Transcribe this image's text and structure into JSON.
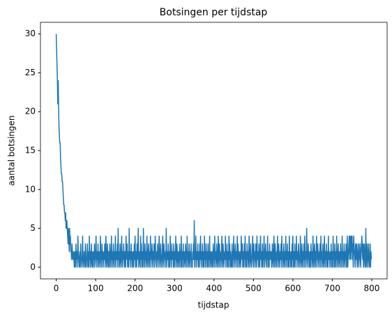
{
  "chart_data": {
    "type": "line",
    "title": "Botsingen per tijdstap",
    "x_label": "tijdstap",
    "y_label": "aantal botsingen",
    "xlim": [
      -39.95,
      838.95
    ],
    "xticks": [
      0,
      100,
      200,
      300,
      400,
      500,
      600,
      700,
      800
    ],
    "ylim": [
      -1.5,
      31.5
    ],
    "yticks": [
      0,
      5,
      10,
      15,
      20,
      25,
      30
    ],
    "grid": false,
    "x": [
      0,
      1,
      2,
      3,
      4,
      5,
      6,
      7,
      8,
      9,
      10,
      11,
      12,
      13,
      14,
      15,
      16,
      17,
      18,
      19,
      20,
      21,
      22,
      23,
      24,
      25,
      26,
      27,
      28,
      29,
      30,
      31,
      32,
      33,
      34,
      35,
      36,
      37,
      38,
      39,
      40,
      41,
      42,
      43,
      44,
      45,
      46,
      47,
      48,
      49,
      50,
      51,
      52,
      53,
      54,
      55,
      56,
      57,
      58,
      59,
      60,
      61,
      62,
      63,
      64,
      65,
      66,
      67,
      68,
      69,
      70,
      71,
      72,
      73,
      74,
      75,
      76,
      77,
      78,
      79,
      80,
      81,
      82,
      83,
      84,
      85,
      86,
      87,
      88,
      89,
      90,
      91,
      92,
      93,
      94,
      95,
      96,
      97,
      98,
      99,
      100,
      101,
      102,
      103,
      104,
      105,
      106,
      107,
      108,
      109,
      110,
      111,
      112,
      113,
      114,
      115,
      116,
      117,
      118,
      119,
      120,
      121,
      122,
      123,
      124,
      125,
      126,
      127,
      128,
      129,
      130,
      131,
      132,
      133,
      134,
      135,
      136,
      137,
      138,
      139,
      140,
      141,
      142,
      143,
      144,
      145,
      146,
      147,
      148,
      149,
      150,
      151,
      152,
      153,
      154,
      155,
      156,
      157,
      158,
      159,
      160,
      161,
      162,
      163,
      164,
      165,
      166,
      167,
      168,
      169,
      170,
      171,
      172,
      173,
      174,
      175,
      176,
      177,
      178,
      179,
      180,
      181,
      182,
      183,
      184,
      185,
      186,
      187,
      188,
      189,
      190,
      191,
      192,
      193,
      194,
      195,
      196,
      197,
      198,
      199,
      200,
      201,
      202,
      203,
      204,
      205,
      206,
      207,
      208,
      209,
      210,
      211,
      212,
      213,
      214,
      215,
      216,
      217,
      218,
      219,
      220,
      221,
      222,
      223,
      224,
      225,
      226,
      227,
      228,
      229,
      230,
      231,
      232,
      233,
      234,
      235,
      236,
      237,
      238,
      239,
      240,
      241,
      242,
      243,
      244,
      245,
      246,
      247,
      248,
      249,
      250,
      251,
      252,
      253,
      254,
      255,
      256,
      257,
      258,
      259,
      260,
      261,
      262,
      263,
      264,
      265,
      266,
      267,
      268,
      269,
      270,
      271,
      272,
      273,
      274,
      275,
      276,
      277,
      278,
      279,
      280,
      281,
      282,
      283,
      284,
      285,
      286,
      287,
      288,
      289,
      290,
      291,
      292,
      293,
      294,
      295,
      296,
      297,
      298,
      299,
      300,
      301,
      302,
      303,
      304,
      305,
      306,
      307,
      308,
      309,
      310,
      311,
      312,
      313,
      314,
      315,
      316,
      317,
      318,
      319,
      320,
      321,
      322,
      323,
      324,
      325,
      326,
      327,
      328,
      329,
      330,
      331,
      332,
      333,
      334,
      335,
      336,
      337,
      338,
      339,
      340,
      341,
      342,
      343,
      344,
      345,
      346,
      347,
      348,
      349,
      350,
      351,
      352,
      353,
      354,
      355,
      356,
      357,
      358,
      359,
      360,
      361,
      362,
      363,
      364,
      365,
      366,
      367,
      368,
      369,
      370,
      371,
      372,
      373,
      374,
      375,
      376,
      377,
      378,
      379,
      380,
      381,
      382,
      383,
      384,
      385,
      386,
      387,
      388,
      389,
      390,
      391,
      392,
      393,
      394,
      395,
      396,
      397,
      398,
      399,
      400,
      401,
      402,
      403,
      404,
      405,
      406,
      407,
      408,
      409,
      410,
      411,
      412,
      413,
      414,
      415,
      416,
      417,
      418,
      419,
      420,
      421,
      422,
      423,
      424,
      425,
      426,
      427,
      428,
      429,
      430,
      431,
      432,
      433,
      434,
      435,
      436,
      437,
      438,
      439,
      440,
      441,
      442,
      443,
      444,
      445,
      446,
      447,
      448,
      449,
      450,
      451,
      452,
      453,
      454,
      455,
      456,
      457,
      458,
      459,
      460,
      461,
      462,
      463,
      464,
      465,
      466,
      467,
      468,
      469,
      470,
      471,
      472,
      473,
      474,
      475,
      476,
      477,
      478,
      479,
      480,
      481,
      482,
      483,
      484,
      485,
      486,
      487,
      488,
      489,
      490,
      491,
      492,
      493,
      494,
      495,
      496,
      497,
      498,
      499,
      500,
      501,
      502,
      503,
      504,
      505,
      506,
      507,
      508,
      509,
      510,
      511,
      512,
      513,
      514,
      515,
      516,
      517,
      518,
      519,
      520,
      521,
      522,
      523,
      524,
      525,
      526,
      527,
      528,
      529,
      530,
      531,
      532,
      533,
      534,
      535,
      536,
      537,
      538,
      539,
      540,
      541,
      542,
      543,
      544,
      545,
      546,
      547,
      548,
      549,
      550,
      551,
      552,
      553,
      554,
      555,
      556,
      557,
      558,
      559,
      560,
      561,
      562,
      563,
      564,
      565,
      566,
      567,
      568,
      569,
      570,
      571,
      572,
      573,
      574,
      575,
      576,
      577,
      578,
      579,
      580,
      581,
      582,
      583,
      584,
      585,
      586,
      587,
      588,
      589,
      590,
      591,
      592,
      593,
      594,
      595,
      596,
      597,
      598,
      599,
      600,
      601,
      602,
      603,
      604,
      605,
      606,
      607,
      608,
      609,
      610,
      611,
      612,
      613,
      614,
      615,
      616,
      617,
      618,
      619,
      620,
      621,
      622,
      623,
      624,
      625,
      626,
      627,
      628,
      629,
      630,
      631,
      632,
      633,
      634,
      635,
      636,
      637,
      638,
      639,
      640,
      641,
      642,
      643,
      644,
      645,
      646,
      647,
      648,
      649,
      650,
      651,
      652,
      653,
      654,
      655,
      656,
      657,
      658,
      659,
      660,
      661,
      662,
      663,
      664,
      665,
      666,
      667,
      668,
      669,
      670,
      671,
      672,
      673,
      674,
      675,
      676,
      677,
      678,
      679,
      680,
      681,
      682,
      683,
      684,
      685,
      686,
      687,
      688,
      689,
      690,
      691,
      692,
      693,
      694,
      695,
      696,
      697,
      698,
      699,
      700,
      701,
      702,
      703,
      704,
      705,
      706,
      707,
      708,
      709,
      710,
      711,
      712,
      713,
      714,
      715,
      716,
      717,
      718,
      719,
      720,
      721,
      722,
      723,
      724,
      725,
      726,
      727,
      728,
      729,
      730,
      731,
      732,
      733,
      734,
      735,
      736,
      737,
      738,
      739,
      740,
      741,
      742,
      743,
      744,
      745,
      746,
      747,
      748,
      749,
      750,
      751,
      752,
      753,
      754,
      755,
      756,
      757,
      758,
      759,
      760,
      761,
      762,
      763,
      764,
      765,
      766,
      767,
      768,
      769,
      770,
      771,
      772,
      773,
      774,
      775,
      776,
      777,
      778,
      779,
      780,
      781,
      782,
      783,
      784,
      785,
      786,
      787,
      788,
      789,
      790,
      791,
      792,
      793,
      794,
      795,
      796,
      797,
      798,
      799
    ],
    "series": [
      {
        "color": "#1f77b4",
        "values": [
          30,
          28,
          26,
          24,
          21,
          24,
          21,
          18,
          17,
          16,
          16,
          14,
          13,
          12,
          12,
          11,
          11,
          10,
          9,
          8,
          8,
          7,
          7,
          6,
          7,
          5,
          5,
          6,
          5,
          4,
          3,
          5,
          4,
          2,
          5,
          3,
          4,
          2,
          2,
          1,
          3,
          2,
          1,
          1,
          2,
          1,
          0,
          2,
          1,
          0,
          3,
          1,
          2,
          0,
          1,
          4,
          2,
          1,
          0,
          1,
          2,
          0,
          3,
          1,
          1,
          0,
          2,
          4,
          1,
          0,
          1,
          2,
          1,
          0,
          3,
          2,
          0,
          1,
          1,
          3,
          0,
          2,
          1,
          0,
          4,
          1,
          2,
          0,
          1,
          3,
          1,
          0,
          2,
          1,
          0,
          2,
          1,
          3,
          0,
          1,
          2,
          4,
          1,
          0,
          2,
          1,
          3,
          0,
          1,
          2,
          1,
          0,
          4,
          2,
          1,
          0,
          3,
          1,
          2,
          0,
          1,
          2,
          1,
          3,
          0,
          1,
          4,
          2,
          0,
          1,
          3,
          1,
          0,
          2,
          1,
          0,
          3,
          2,
          1,
          0,
          4,
          1,
          2,
          0,
          1,
          3,
          1,
          0,
          2,
          1,
          4,
          0,
          1,
          2,
          1,
          3,
          0,
          5,
          1,
          2,
          0,
          1,
          3,
          1,
          0,
          2,
          4,
          1,
          0,
          2,
          1,
          3,
          1,
          0,
          2,
          1,
          0,
          4,
          2,
          1,
          3,
          0,
          1,
          2,
          0,
          5,
          1,
          2,
          1,
          0,
          3,
          1,
          2,
          0,
          1,
          2,
          0,
          1,
          3,
          1,
          4,
          0,
          2,
          1,
          0,
          3,
          1,
          2,
          5,
          0,
          1,
          2,
          1,
          0,
          4,
          1,
          3,
          0,
          2,
          1,
          0,
          5,
          2,
          1,
          0,
          3,
          1,
          2,
          0,
          1,
          4,
          1,
          0,
          2,
          3,
          1,
          0,
          2,
          1,
          4,
          0,
          1,
          2,
          3,
          1,
          0,
          2,
          1,
          3,
          0,
          1,
          4,
          2,
          1,
          0,
          2,
          1,
          3,
          0,
          1,
          2,
          4,
          1,
          0,
          2,
          3,
          1,
          0,
          1,
          2,
          4,
          0,
          1,
          3,
          2,
          1,
          0,
          2,
          1,
          5,
          0,
          1,
          2,
          1,
          3,
          0,
          2,
          1,
          0,
          4,
          1,
          2,
          0,
          3,
          1,
          1,
          2,
          0,
          3,
          1,
          0,
          2,
          1,
          4,
          0,
          1,
          3,
          2,
          0,
          1,
          2,
          1,
          0,
          3,
          1,
          2,
          0,
          4,
          1,
          0,
          2,
          1,
          3,
          0,
          1,
          2,
          1,
          0,
          3,
          2,
          1,
          0,
          4,
          1,
          2,
          0,
          1,
          3,
          1,
          0,
          2,
          1,
          3,
          0,
          1,
          0,
          2,
          1,
          3,
          1,
          6,
          0,
          2,
          1,
          4,
          0,
          1,
          2,
          1,
          3,
          0,
          1,
          2,
          0,
          3,
          1,
          4,
          1,
          0,
          2,
          1,
          3,
          0,
          2,
          1,
          0,
          4,
          1,
          2,
          0,
          3,
          1,
          2,
          0,
          1,
          3,
          0,
          2,
          1,
          4,
          0,
          1,
          2,
          1,
          0,
          2,
          1,
          0,
          3,
          2,
          1,
          0,
          4,
          1,
          2,
          0,
          1,
          3,
          1,
          0,
          2,
          4,
          1,
          0,
          3,
          1,
          2,
          0,
          1,
          2,
          4,
          0,
          1,
          3,
          2,
          0,
          1,
          2,
          1,
          4,
          0,
          2,
          1,
          3,
          0,
          1,
          2,
          0,
          4,
          1,
          3,
          0,
          2,
          1,
          0,
          1,
          3,
          0,
          2,
          1,
          4,
          0,
          1,
          2,
          3,
          1,
          0,
          2,
          1,
          4,
          0,
          3,
          1,
          2,
          0,
          1,
          2,
          1,
          0,
          4,
          2,
          1,
          3,
          0,
          1,
          2,
          0,
          3,
          1,
          4,
          0,
          2,
          1,
          0,
          3,
          1,
          2,
          0,
          1,
          4,
          2,
          0,
          1,
          3,
          1,
          0,
          1,
          2,
          4,
          1,
          0,
          3,
          1,
          2,
          0,
          1,
          3,
          2,
          0,
          4,
          1,
          2,
          1,
          0,
          3,
          1,
          0,
          2,
          4,
          1,
          2,
          0,
          1,
          3,
          0,
          2,
          1,
          4,
          0,
          1,
          2,
          3,
          1,
          0,
          2,
          1,
          4,
          0,
          1,
          2,
          0,
          3,
          1,
          2,
          1,
          2,
          0,
          1,
          3,
          1,
          0,
          2,
          4,
          1,
          0,
          3,
          2,
          1,
          0,
          2,
          1,
          4,
          0,
          1,
          3,
          2,
          0,
          1,
          2,
          1,
          3,
          0,
          4,
          1,
          2,
          0,
          1,
          3,
          1,
          0,
          2,
          1,
          4,
          0,
          2,
          1,
          3,
          0,
          1,
          2,
          0,
          4,
          1,
          2,
          0,
          1,
          2,
          0,
          3,
          1,
          4,
          0,
          2,
          1,
          0,
          3,
          1,
          2,
          0,
          4,
          1,
          2,
          1,
          0,
          3,
          2,
          1,
          0,
          1,
          4,
          2,
          0,
          1,
          3,
          1,
          0,
          2,
          1,
          3,
          0,
          4,
          1,
          2,
          0,
          1,
          5,
          2,
          1,
          0,
          3,
          1,
          2,
          0,
          1,
          2,
          0,
          3,
          1,
          2,
          0,
          1,
          4,
          1,
          0,
          2,
          3,
          1,
          0,
          2,
          1,
          4,
          0,
          1,
          3,
          2,
          1,
          0,
          2,
          1,
          3,
          0,
          4,
          1,
          2,
          0,
          1,
          3,
          1,
          0,
          2,
          4,
          1,
          0,
          2,
          1,
          3,
          0,
          1,
          2,
          0,
          4,
          1,
          2,
          1,
          0,
          2,
          1,
          3,
          0,
          1,
          2,
          0,
          4,
          1,
          2,
          0,
          3,
          1,
          0,
          2,
          1,
          4,
          0,
          1,
          2,
          3,
          0,
          1,
          2,
          1,
          0,
          3,
          1,
          2,
          0,
          4,
          1,
          2,
          0,
          1,
          3,
          1,
          0,
          2,
          1,
          3,
          0,
          1,
          4,
          0,
          1,
          2,
          3,
          4,
          1,
          4,
          3,
          1,
          4,
          2,
          4,
          1,
          3,
          0,
          4,
          3,
          2,
          1,
          0,
          3,
          2,
          1,
          3,
          0,
          1,
          2,
          3,
          0,
          1,
          2,
          3,
          1,
          0,
          2,
          3,
          4,
          2,
          1,
          3,
          0,
          1,
          3,
          2,
          0,
          1,
          5,
          0,
          2,
          3,
          1,
          0,
          2,
          3,
          1,
          0,
          1,
          3,
          0,
          2,
          1
        ]
      }
    ]
  }
}
